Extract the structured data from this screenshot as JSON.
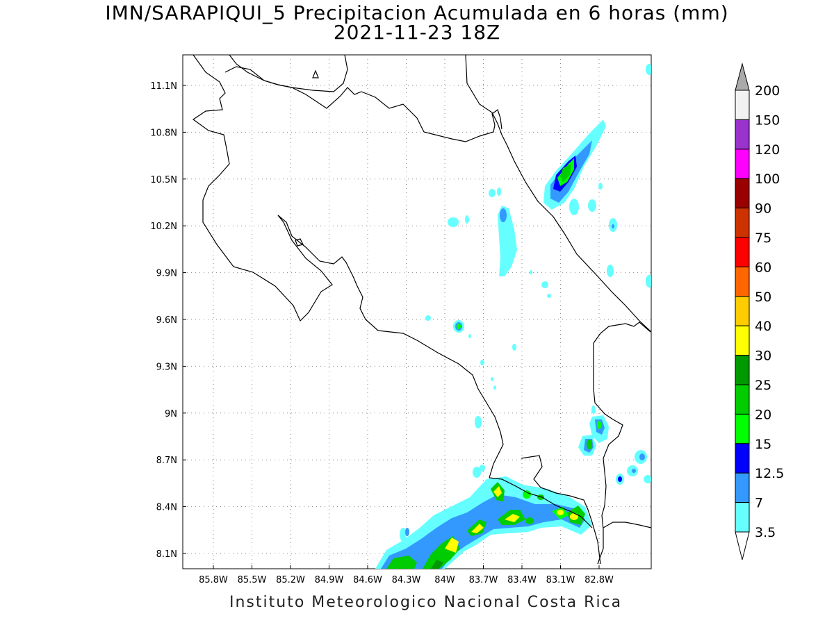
{
  "title_line1": "IMN/SARAPIQUI_5 Precipitacion Acumulada en 6 horas (mm)",
  "title_line2": "2021-11-23 18Z",
  "footer": "Instituto Meteorologico Nacional Costa Rica",
  "map": {
    "lon_labels": [
      "85.8W",
      "85.5W",
      "85.2W",
      "84.9W",
      "84.6W",
      "84.3W",
      "84W",
      "83.7W",
      "83.4W",
      "83.1W",
      "82.8W"
    ],
    "lat_labels": [
      "11.1N",
      "10.8N",
      "10.5N",
      "10.2N",
      "9.9N",
      "9.6N",
      "9.3N",
      "9N",
      "8.7N",
      "8.4N",
      "8.1N"
    ],
    "grid": "dotted"
  },
  "colorbar": {
    "labels": [
      "200",
      "150",
      "120",
      "100",
      "90",
      "75",
      "60",
      "50",
      "40",
      "30",
      "25",
      "20",
      "15",
      "12.5",
      "7",
      "3.5"
    ],
    "colors": [
      "#f2f2f2",
      "#9933cc",
      "#ff00ff",
      "#990000",
      "#cc3300",
      "#ff0000",
      "#ff6600",
      "#ffcc00",
      "#ffff00",
      "#009900",
      "#00cc00",
      "#00ff00",
      "#0000ff",
      "#3399ff",
      "#66ffff"
    ],
    "top_arrow_color": "#aaaaaa"
  }
}
